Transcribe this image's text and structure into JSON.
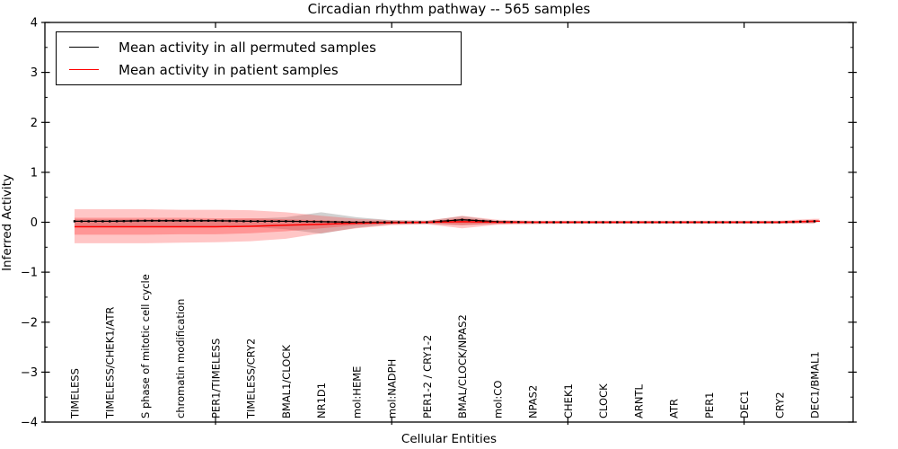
{
  "title": "Circadian rhythm pathway -- 565 samples",
  "axes": {
    "x_label": "Cellular Entities",
    "y_label": "Inferred Activity"
  },
  "legend": {
    "entries": [
      {
        "label": "Mean activity in all permuted samples",
        "color": "#000000"
      },
      {
        "label": "Mean activity in patient samples",
        "color": "#ff0000"
      }
    ]
  },
  "colors": {
    "permuted_line": "#000000",
    "patient_line": "#ff0000",
    "patient_band": "#ff3333",
    "permuted_band": "#999999",
    "axis": "#000000"
  },
  "chart_data": {
    "type": "line",
    "title": "Circadian rhythm pathway -- 565 samples",
    "xlabel": "Cellular Entities",
    "ylabel": "Inferred Activity",
    "ylim": [
      -4,
      4
    ],
    "ytick_major_step": 1,
    "ytick_minor_step": 0.5,
    "grid": false,
    "legend_position": "upper left",
    "categories": [
      "TIMELESS",
      "TIMELESS/CHEK1/ATR",
      "S phase of mitotic cell cycle",
      "chromatin modification",
      "PER1/TIMELESS",
      "TIMELESS/CRY2",
      "BMAL1/CLOCK",
      "NR1D1",
      "mol:HEME",
      "mol:NADPH",
      "PER1-2 / CRY1-2",
      "BMAL/CLOCK/NPAS2",
      "mol:CO",
      "NPAS2",
      "CHEK1",
      "CLOCK",
      "ARNTL",
      "ATR",
      "PER1",
      "DEC1",
      "CRY2",
      "DEC1/BMAL1"
    ],
    "x_major_tick_category_indices": [
      4,
      9,
      14,
      19
    ],
    "series": [
      {
        "name": "Mean activity in all permuted samples",
        "color": "#000000",
        "marker": "square-dots",
        "values": [
          0.02,
          0.02,
          0.03,
          0.03,
          0.03,
          0.02,
          0.02,
          0.01,
          0.0,
          0.0,
          0.0,
          0.05,
          0.01,
          0.0,
          0.0,
          0.0,
          0.0,
          0.0,
          0.0,
          0.0,
          0.0,
          0.02
        ]
      },
      {
        "name": "Mean activity in patient samples",
        "color": "#ff0000",
        "marker": "none",
        "values": [
          -0.09,
          -0.09,
          -0.09,
          -0.09,
          -0.09,
          -0.08,
          -0.06,
          -0.04,
          -0.02,
          -0.01,
          0.0,
          0.01,
          0.0,
          0.0,
          0.0,
          0.0,
          0.0,
          0.0,
          0.0,
          0.0,
          0.0,
          0.02
        ]
      }
    ],
    "bands": [
      {
        "name": "permuted-sample-spread",
        "color": "#999999",
        "opacity": 0.45,
        "upper": [
          0.06,
          0.06,
          0.06,
          0.06,
          0.06,
          0.07,
          0.1,
          0.2,
          0.1,
          0.04,
          0.03,
          0.12,
          0.03,
          0.02,
          0.02,
          0.02,
          0.02,
          0.02,
          0.02,
          0.02,
          0.02,
          0.03
        ],
        "lower": [
          -0.08,
          -0.08,
          -0.08,
          -0.08,
          -0.08,
          -0.09,
          -0.14,
          -0.23,
          -0.11,
          -0.04,
          -0.03,
          -0.06,
          -0.03,
          -0.02,
          -0.02,
          -0.02,
          -0.02,
          -0.02,
          -0.02,
          -0.02,
          -0.02,
          -0.02
        ]
      },
      {
        "name": "patient-spread-outer",
        "color": "#ff3333",
        "opacity": 0.28,
        "upper": [
          0.26,
          0.26,
          0.26,
          0.25,
          0.25,
          0.24,
          0.2,
          0.13,
          0.07,
          0.04,
          0.03,
          0.13,
          0.05,
          0.03,
          0.03,
          0.03,
          0.03,
          0.03,
          0.03,
          0.03,
          0.03,
          0.07
        ],
        "lower": [
          -0.42,
          -0.42,
          -0.42,
          -0.41,
          -0.4,
          -0.38,
          -0.33,
          -0.22,
          -0.12,
          -0.06,
          -0.04,
          -0.12,
          -0.05,
          -0.04,
          -0.03,
          -0.03,
          -0.03,
          -0.03,
          -0.03,
          -0.03,
          -0.03,
          -0.02
        ]
      },
      {
        "name": "patient-spread-inner",
        "color": "#ff3333",
        "opacity": 0.33,
        "upper": [
          0.09,
          0.09,
          0.09,
          0.09,
          0.08,
          0.08,
          0.06,
          0.04,
          0.02,
          0.02,
          0.01,
          0.08,
          0.02,
          0.02,
          0.02,
          0.02,
          0.02,
          0.02,
          0.02,
          0.02,
          0.02,
          0.05
        ],
        "lower": [
          -0.25,
          -0.25,
          -0.25,
          -0.24,
          -0.24,
          -0.22,
          -0.18,
          -0.12,
          -0.06,
          -0.03,
          -0.02,
          -0.06,
          -0.03,
          -0.02,
          -0.02,
          -0.02,
          -0.02,
          -0.02,
          -0.02,
          -0.02,
          -0.02,
          -0.01
        ]
      }
    ],
    "marker_dots": {
      "shape": "square",
      "size": 2.4,
      "spacing_fraction_of_category": 0.2
    }
  }
}
